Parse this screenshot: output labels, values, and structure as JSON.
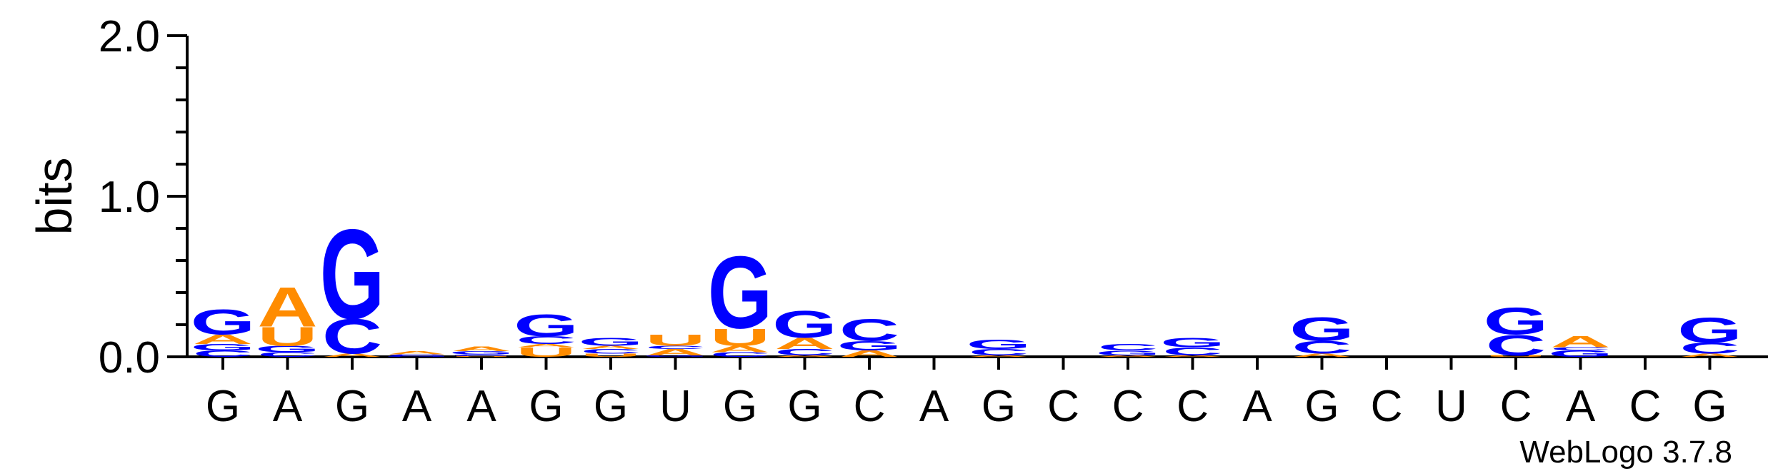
{
  "chart_data": {
    "type": "sequence-logo",
    "ylabel": "bits",
    "ylim": [
      0,
      2.0
    ],
    "yticks": [
      "0.0",
      "1.0",
      "2.0"
    ],
    "credit": "WebLogo 3.7.8",
    "colors": {
      "G": "#0000ff",
      "C": "#0000ff",
      "A": "#ff8c00",
      "U": "#ff8c00"
    },
    "positions": [
      {
        "label": "G",
        "stack": [
          [
            "C",
            0.04
          ],
          [
            "G",
            0.04
          ],
          [
            "A",
            0.06
          ],
          [
            "G",
            0.16
          ]
        ]
      },
      {
        "label": "A",
        "stack": [
          [
            "C",
            0.03
          ],
          [
            "G",
            0.04
          ],
          [
            "U",
            0.12
          ],
          [
            "A",
            0.25
          ]
        ]
      },
      {
        "label": "G",
        "stack": [
          [
            "A",
            0.02
          ],
          [
            "C",
            0.22
          ],
          [
            "G",
            0.57
          ]
        ]
      },
      {
        "label": "A",
        "stack": [
          [
            "G",
            0.005
          ],
          [
            "C",
            0.01
          ],
          [
            "A",
            0.02
          ]
        ]
      },
      {
        "label": "A",
        "stack": [
          [
            "U",
            0.005
          ],
          [
            "C",
            0.01
          ],
          [
            "G",
            0.02
          ],
          [
            "A",
            0.03
          ]
        ]
      },
      {
        "label": "G",
        "stack": [
          [
            "U",
            0.06
          ],
          [
            "A",
            0.02
          ],
          [
            "C",
            0.05
          ],
          [
            "G",
            0.14
          ]
        ]
      },
      {
        "label": "G",
        "stack": [
          [
            "U",
            0.02
          ],
          [
            "C",
            0.03
          ],
          [
            "A",
            0.02
          ],
          [
            "G",
            0.05
          ]
        ]
      },
      {
        "label": "U",
        "stack": [
          [
            "G",
            0.01
          ],
          [
            "A",
            0.04
          ],
          [
            "C",
            0.02
          ],
          [
            "U",
            0.07
          ]
        ]
      },
      {
        "label": "G",
        "stack": [
          [
            "C",
            0.03
          ],
          [
            "A",
            0.04
          ],
          [
            "U",
            0.11
          ],
          [
            "G",
            0.46
          ]
        ]
      },
      {
        "label": "G",
        "stack": [
          [
            "A",
            0.01
          ],
          [
            "C",
            0.04
          ],
          [
            "A",
            0.07
          ],
          [
            "G",
            0.17
          ]
        ]
      },
      {
        "label": "C",
        "stack": [
          [
            "A",
            0.04
          ],
          [
            "G",
            0.06
          ],
          [
            "C",
            0.14
          ]
        ]
      },
      {
        "label": "A",
        "stack": []
      },
      {
        "label": "G",
        "stack": [
          [
            "A",
            0.01
          ],
          [
            "C",
            0.04
          ],
          [
            "G",
            0.06
          ]
        ]
      },
      {
        "label": "C",
        "stack": []
      },
      {
        "label": "C",
        "stack": [
          [
            "A",
            0.01
          ],
          [
            "G",
            0.03
          ],
          [
            "C",
            0.04
          ]
        ]
      },
      {
        "label": "C",
        "stack": [
          [
            "A",
            0.01
          ],
          [
            "C",
            0.05
          ],
          [
            "G",
            0.06
          ]
        ]
      },
      {
        "label": "A",
        "stack": []
      },
      {
        "label": "G",
        "stack": [
          [
            "A",
            0.02
          ],
          [
            "C",
            0.08
          ],
          [
            "G",
            0.15
          ]
        ]
      },
      {
        "label": "C",
        "stack": []
      },
      {
        "label": "U",
        "stack": []
      },
      {
        "label": "C",
        "stack": [
          [
            "U",
            0.01
          ],
          [
            "C",
            0.13
          ],
          [
            "G",
            0.17
          ]
        ]
      },
      {
        "label": "A",
        "stack": [
          [
            "G",
            0.04
          ],
          [
            "C",
            0.02
          ],
          [
            "A",
            0.07
          ]
        ]
      },
      {
        "label": "C",
        "stack": []
      },
      {
        "label": "G",
        "stack": [
          [
            "A",
            0.02
          ],
          [
            "C",
            0.07
          ],
          [
            "G",
            0.16
          ]
        ]
      }
    ]
  }
}
